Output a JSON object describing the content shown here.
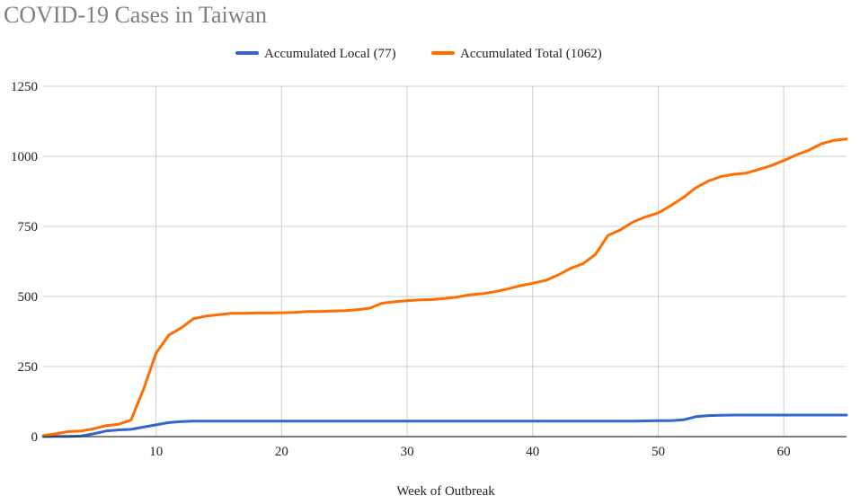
{
  "chart_data": {
    "type": "line",
    "title": "COVID-19 Cases in Taiwan",
    "xlabel": "Week of Outbreak",
    "ylabel": "",
    "xlim": [
      1,
      65
    ],
    "ylim": [
      0,
      1250
    ],
    "xticks": [
      10,
      20,
      30,
      40,
      50,
      60
    ],
    "yticks": [
      0,
      250,
      500,
      750,
      1000,
      1250
    ],
    "grid": true,
    "legend_position": "top-center",
    "x": [
      1,
      2,
      3,
      4,
      5,
      6,
      7,
      8,
      9,
      10,
      11,
      12,
      13,
      14,
      15,
      16,
      17,
      18,
      19,
      20,
      21,
      22,
      23,
      24,
      25,
      26,
      27,
      28,
      29,
      30,
      31,
      32,
      33,
      34,
      35,
      36,
      37,
      38,
      39,
      40,
      41,
      42,
      43,
      44,
      45,
      46,
      47,
      48,
      49,
      50,
      51,
      52,
      53,
      54,
      55,
      56,
      57,
      58,
      59,
      60,
      61,
      62,
      63,
      64,
      65
    ],
    "series": [
      {
        "name": "Accumulated Local (77)",
        "color": "#3366cc",
        "values": [
          0,
          1,
          1,
          2,
          10,
          20,
          24,
          26,
          34,
          42,
          50,
          54,
          55,
          55,
          55,
          55,
          55,
          55,
          55,
          55,
          55,
          55,
          55,
          55,
          55,
          55,
          55,
          55,
          55,
          55,
          55,
          55,
          55,
          55,
          55,
          55,
          55,
          55,
          55,
          55,
          55,
          55,
          55,
          55,
          55,
          55,
          55,
          55,
          56,
          57,
          57,
          60,
          71,
          75,
          76,
          77,
          77,
          77,
          77,
          77,
          77,
          77,
          77,
          77,
          77
        ]
      },
      {
        "name": "Accumulated Total (1062)",
        "color": "#ff6d01",
        "values": [
          4,
          10,
          18,
          20,
          28,
          39,
          44,
          59,
          170,
          298,
          362,
          388,
          421,
          430,
          435,
          440,
          440,
          441,
          441,
          442,
          443,
          446,
          446,
          448,
          449,
          453,
          458,
          476,
          481,
          485,
          488,
          489,
          493,
          498,
          506,
          510,
          517,
          527,
          538,
          547,
          557,
          576,
          600,
          617,
          650,
          718,
          738,
          766,
          784,
          798,
          824,
          853,
          888,
          912,
          928,
          936,
          940,
          953,
          967,
          985,
          1005,
          1022,
          1045,
          1057,
          1062
        ]
      }
    ]
  }
}
